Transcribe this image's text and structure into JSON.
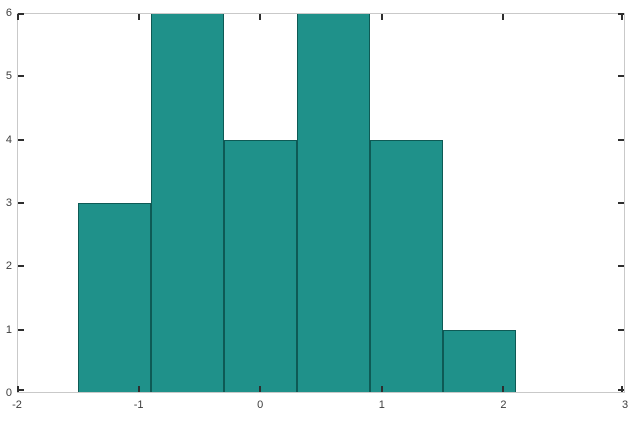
{
  "chart_data": {
    "type": "bar",
    "subtype": "histogram",
    "bin_edges": [
      -1.5,
      -0.9,
      -0.3,
      0.3,
      0.9,
      1.5,
      2.1
    ],
    "counts": [
      3,
      6,
      4,
      6,
      4,
      1
    ],
    "x_tick_labels": [
      "-2",
      "-1",
      "0",
      "1",
      "2",
      "3"
    ],
    "x_tick_values": [
      -2,
      -1,
      0,
      1,
      2,
      3
    ],
    "y_tick_labels": [
      "0",
      "1",
      "2",
      "3",
      "4",
      "5",
      "6"
    ],
    "y_tick_values": [
      0,
      1,
      2,
      3,
      4,
      5,
      6
    ],
    "xlim": [
      -2,
      3
    ],
    "ylim": [
      0,
      6
    ],
    "grid": false,
    "legend": false,
    "box": true,
    "tick_direction": "in",
    "colors": {
      "bar_fill": "#1f918a",
      "bar_edge": "#0e5a55",
      "axis_box": "#c9c9c9",
      "tick_mark": "#2e2e2e",
      "tick_label": "#3d3d3d",
      "background": "#ffffff"
    }
  }
}
